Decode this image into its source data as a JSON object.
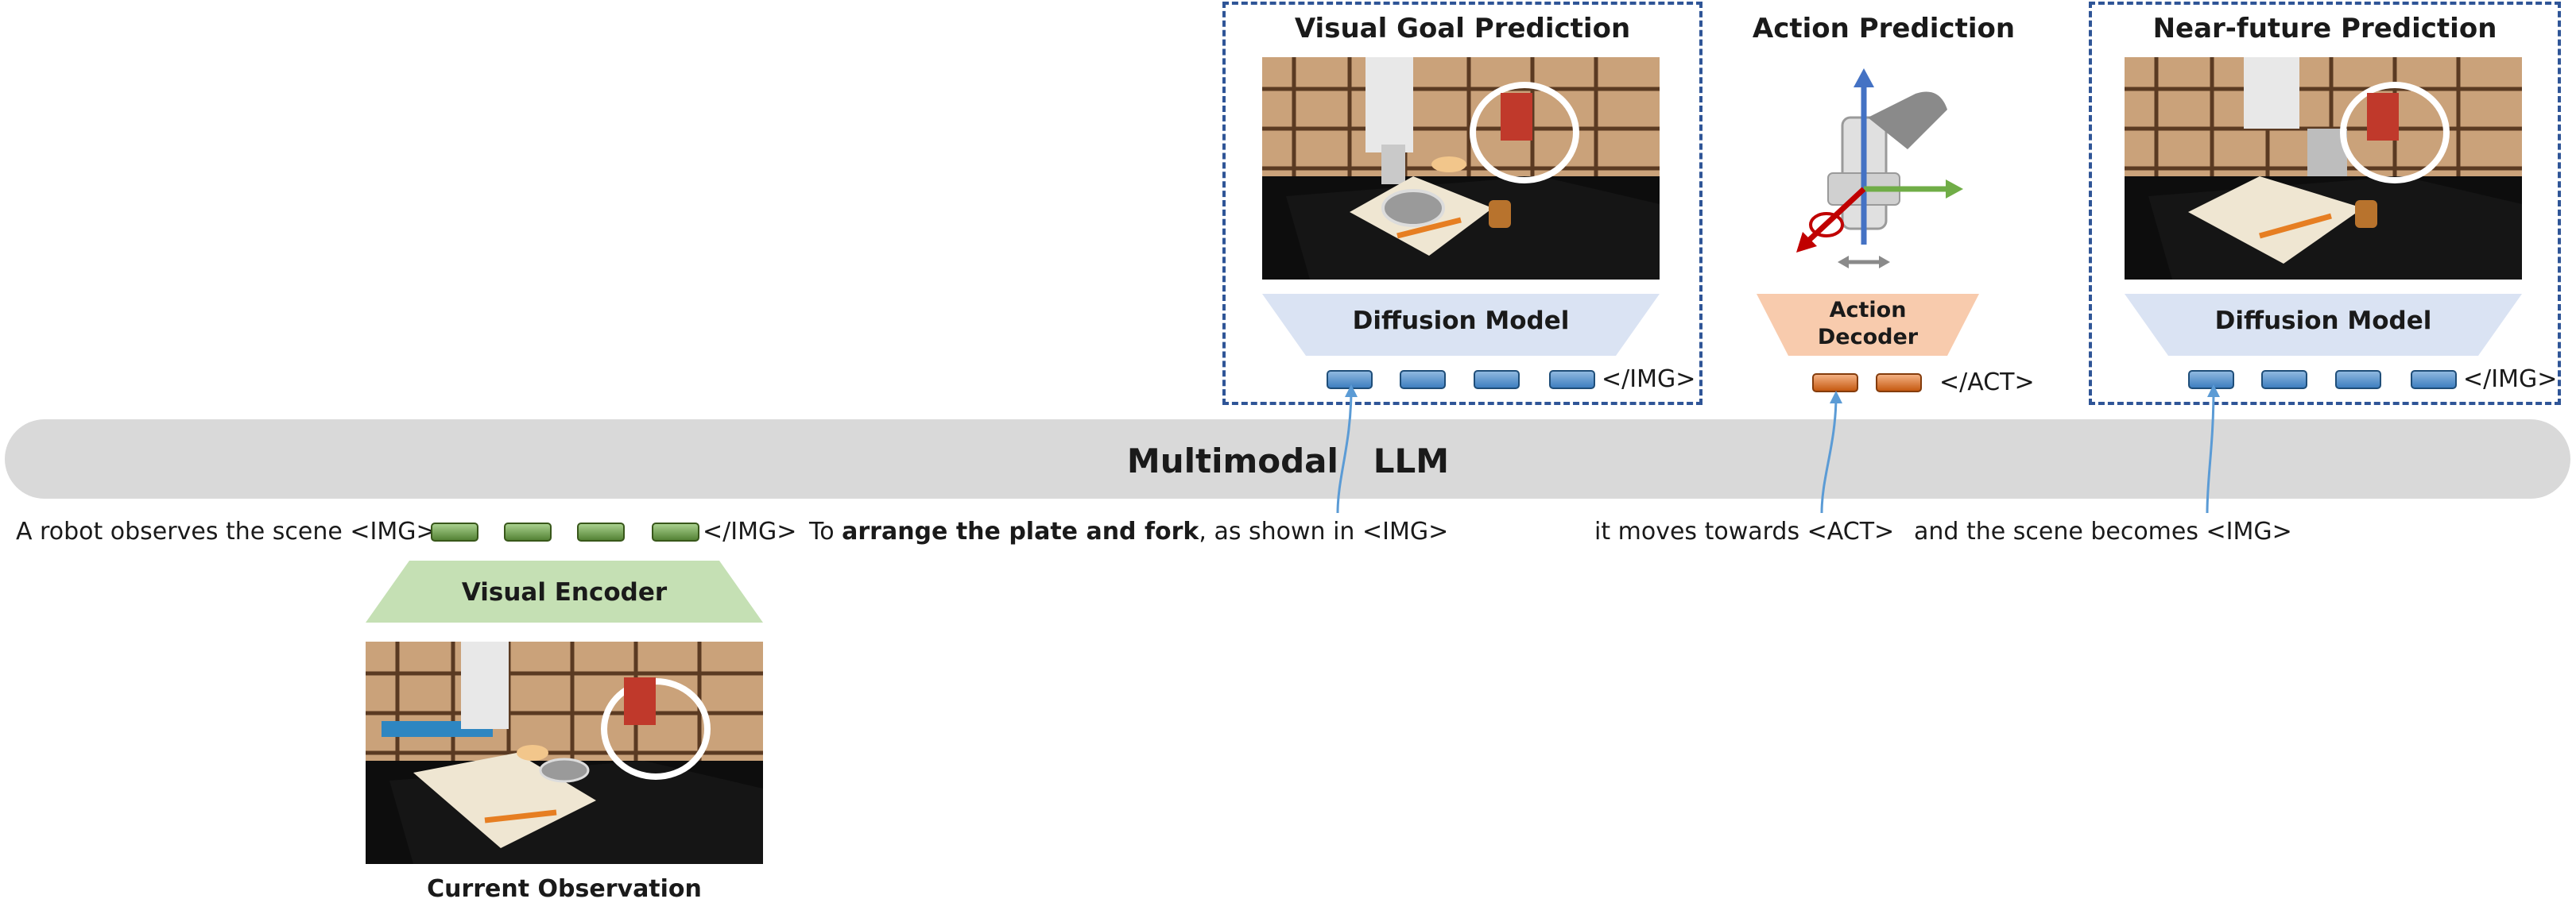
{
  "panels": {
    "visual_goal": {
      "title": "Visual Goal Prediction",
      "decoder_label": "Diffusion Model",
      "end_token": "</IMG>"
    },
    "action": {
      "title": "Action Prediction",
      "decoder_label": "Action Decoder",
      "end_token": "</ACT>"
    },
    "near_future": {
      "title": "Near-future Prediction",
      "decoder_label": "Diffusion Model",
      "end_token": "</IMG>"
    }
  },
  "llm": {
    "label": "Multimodal   LLM"
  },
  "sequence": {
    "prefix": "A robot observes the scene <IMG>",
    "close_img": "</IMG>",
    "instruction_pre": "To ",
    "instruction_bold": "arrange the plate and fork",
    "instruction_post": ", as shown in <IMG>",
    "action_text": "it moves towards <ACT>",
    "scene_text": "and the scene becomes <IMG>"
  },
  "encoder": {
    "label": "Visual Encoder",
    "caption": "Current Observation"
  },
  "colors": {
    "dashed_border": "#2f5597",
    "diffusion_fill": "#dae3f3",
    "action_decoder_fill": "#f8cbad",
    "encoder_fill": "#c5e0b4",
    "llm_fill": "#d9d9d9",
    "image_token": "#5b9bd5",
    "obs_token": "#70ad47",
    "action_token": "#ed7d31"
  },
  "icons": [
    "robot-arm-axes-icon",
    "robot-scene-photo"
  ]
}
